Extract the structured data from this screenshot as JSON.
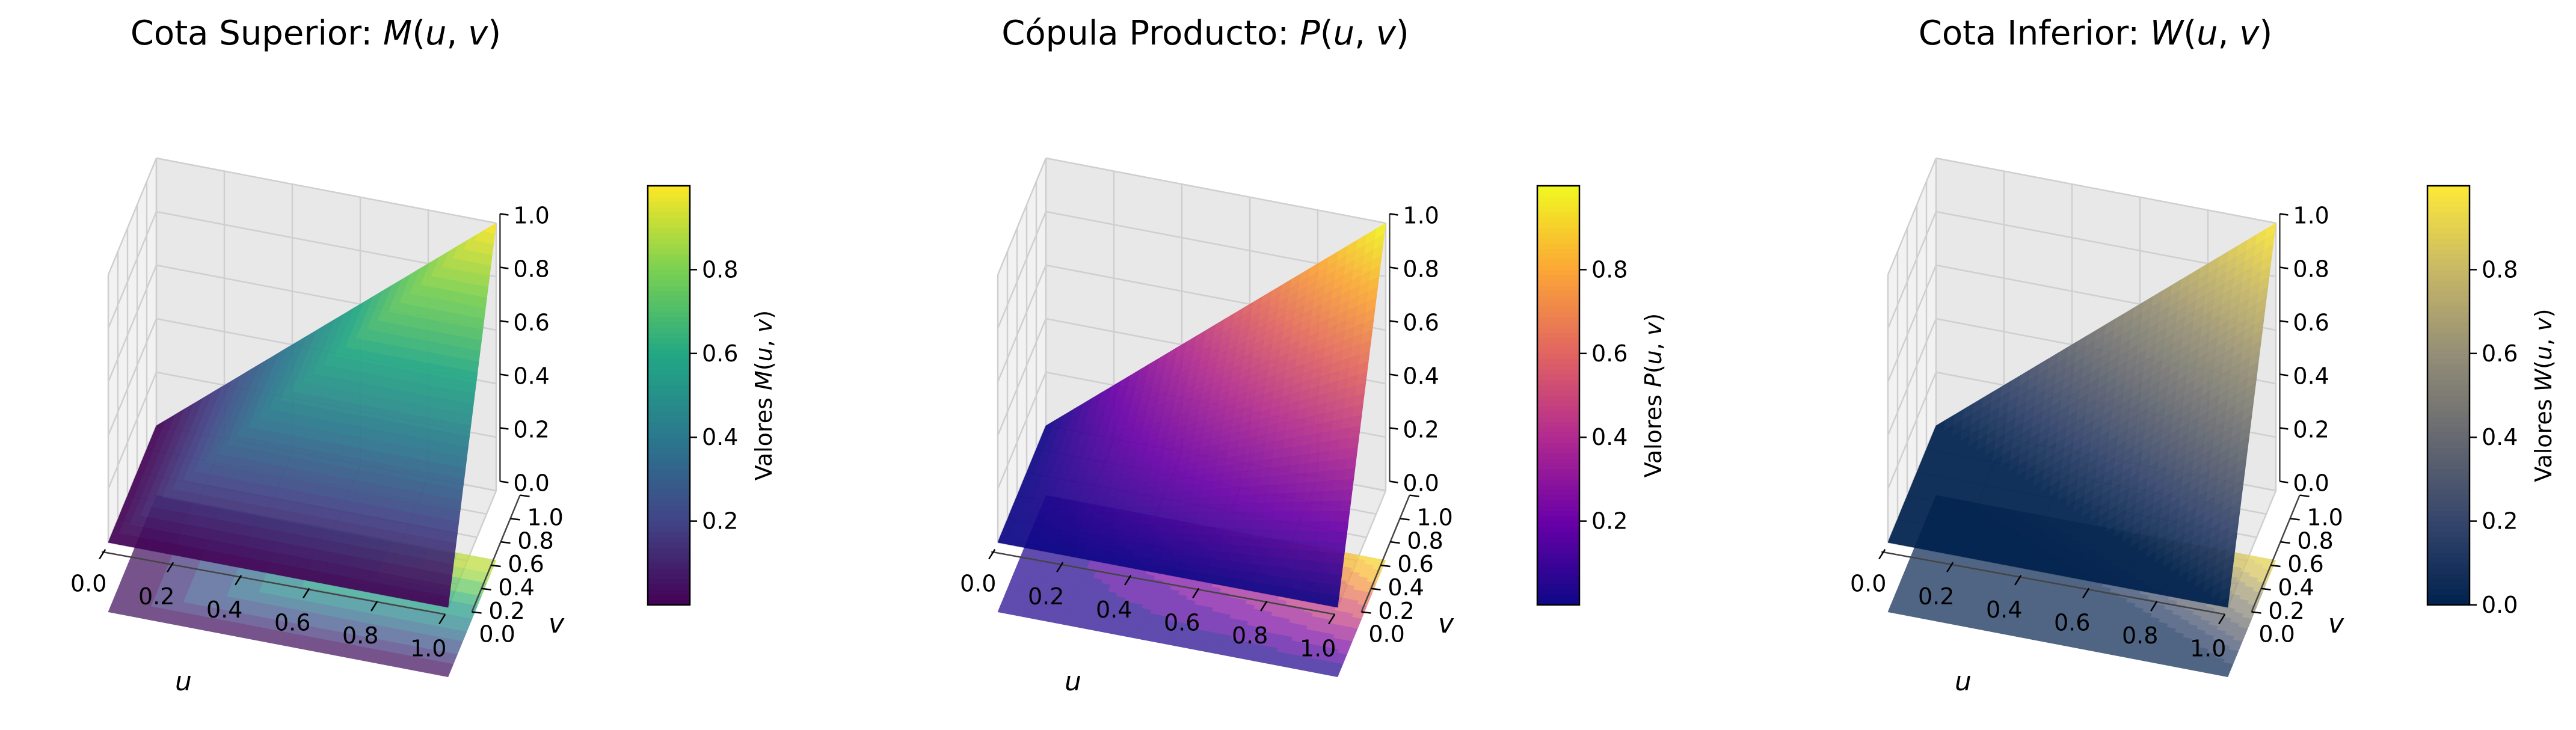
{
  "chart_data": [
    {
      "type": "surface3d",
      "title": "Cota Superior: M(u,v)",
      "title_parts": [
        "Cota Superior: ",
        "M",
        "(",
        "u",
        ", ",
        "v",
        ")"
      ],
      "function": "M(u,v) = min(u,v)",
      "xlabel": "u",
      "ylabel": "v",
      "x": [
        0.0,
        0.2,
        0.4,
        0.6,
        0.8,
        1.0
      ],
      "y": [
        0.0,
        0.2,
        0.4,
        0.6,
        0.8,
        1.0
      ],
      "z": [
        [
          0.0,
          0.0,
          0.0,
          0.0,
          0.0,
          0.0
        ],
        [
          0.0,
          0.2,
          0.2,
          0.2,
          0.2,
          0.2
        ],
        [
          0.0,
          0.2,
          0.4,
          0.4,
          0.4,
          0.4
        ],
        [
          0.0,
          0.2,
          0.4,
          0.6,
          0.6,
          0.6
        ],
        [
          0.0,
          0.2,
          0.4,
          0.6,
          0.8,
          0.8
        ],
        [
          0.0,
          0.2,
          0.4,
          0.6,
          0.8,
          1.0
        ]
      ],
      "x_ticks": [
        "0.0",
        "0.2",
        "0.4",
        "0.6",
        "0.8",
        "1.0"
      ],
      "y_ticks": [
        "0.0",
        "0.2",
        "0.4",
        "0.6",
        "0.8",
        "1.0"
      ],
      "z_ticks": [
        "0.0",
        "0.2",
        "0.4",
        "0.6",
        "0.8",
        "1.0"
      ],
      "zlim": [
        0,
        1
      ],
      "colormap": "viridis",
      "colormap_stops": [
        "#440154",
        "#414487",
        "#2a788e",
        "#22a884",
        "#7ad151",
        "#fde725"
      ],
      "colorbar_label": "Valores M(u,v)",
      "colorbar_label_parts": [
        "Valores ",
        "M",
        "(",
        "u",
        ", ",
        "v",
        ")"
      ],
      "colorbar_ticks": [
        "0.2",
        "0.4",
        "0.6",
        "0.8"
      ],
      "colorbar_tick_values": [
        0.2,
        0.4,
        0.6,
        0.8
      ],
      "colorbar_range": [
        0,
        1
      ],
      "floor_contour": true,
      "grid": true
    },
    {
      "type": "surface3d",
      "title": "Cópula Producto: P(u,v)",
      "title_parts": [
        "Cópula Producto: ",
        "P",
        "(",
        "u",
        ", ",
        "v",
        ")"
      ],
      "function": "P(u,v) = u·v",
      "xlabel": "u",
      "ylabel": "v",
      "x": [
        0.0,
        0.2,
        0.4,
        0.6,
        0.8,
        1.0
      ],
      "y": [
        0.0,
        0.2,
        0.4,
        0.6,
        0.8,
        1.0
      ],
      "z": [
        [
          0.0,
          0.0,
          0.0,
          0.0,
          0.0,
          0.0
        ],
        [
          0.0,
          0.04,
          0.08,
          0.12,
          0.16,
          0.2
        ],
        [
          0.0,
          0.08,
          0.16,
          0.24,
          0.32,
          0.4
        ],
        [
          0.0,
          0.12,
          0.24,
          0.36,
          0.48,
          0.6
        ],
        [
          0.0,
          0.16,
          0.32,
          0.48,
          0.64,
          0.8
        ],
        [
          0.0,
          0.2,
          0.4,
          0.6,
          0.8,
          1.0
        ]
      ],
      "x_ticks": [
        "0.0",
        "0.2",
        "0.4",
        "0.6",
        "0.8",
        "1.0"
      ],
      "y_ticks": [
        "0.0",
        "0.2",
        "0.4",
        "0.6",
        "0.8",
        "1.0"
      ],
      "z_ticks": [
        "0.0",
        "0.2",
        "0.4",
        "0.6",
        "0.8",
        "1.0"
      ],
      "zlim": [
        0,
        1
      ],
      "colormap": "plasma",
      "colormap_stops": [
        "#0d0887",
        "#6a00a8",
        "#b12a90",
        "#e16462",
        "#fca636",
        "#f0f921"
      ],
      "colorbar_label": "Valores P(u,v)",
      "colorbar_label_parts": [
        "Valores ",
        "P",
        "(",
        "u",
        ", ",
        "v",
        ")"
      ],
      "colorbar_ticks": [
        "0.2",
        "0.4",
        "0.6",
        "0.8"
      ],
      "colorbar_tick_values": [
        0.2,
        0.4,
        0.6,
        0.8
      ],
      "colorbar_range": [
        0,
        1
      ],
      "floor_contour": true,
      "grid": true
    },
    {
      "type": "surface3d",
      "title": "Cota Inferior: W(u,v)",
      "title_parts": [
        "Cota Inferior: ",
        "W",
        "(",
        "u",
        ", ",
        "v",
        ")"
      ],
      "function": "W(u,v) = max(u+v-1, 0)",
      "xlabel": "u",
      "ylabel": "v",
      "x": [
        0.0,
        0.2,
        0.4,
        0.6,
        0.8,
        1.0
      ],
      "y": [
        0.0,
        0.2,
        0.4,
        0.6,
        0.8,
        1.0
      ],
      "z": [
        [
          0.0,
          0.0,
          0.0,
          0.0,
          0.0,
          0.0
        ],
        [
          0.0,
          0.0,
          0.0,
          0.0,
          0.0,
          0.2
        ],
        [
          0.0,
          0.0,
          0.0,
          0.0,
          0.2,
          0.4
        ],
        [
          0.0,
          0.0,
          0.0,
          0.2,
          0.4,
          0.6
        ],
        [
          0.0,
          0.0,
          0.2,
          0.4,
          0.6,
          0.8
        ],
        [
          0.0,
          0.2,
          0.4,
          0.6,
          0.8,
          1.0
        ]
      ],
      "x_ticks": [
        "0.0",
        "0.2",
        "0.4",
        "0.6",
        "0.8",
        "1.0"
      ],
      "y_ticks": [
        "0.0",
        "0.2",
        "0.4",
        "0.6",
        "0.8",
        "1.0"
      ],
      "z_ticks": [
        "0.0",
        "0.2",
        "0.4",
        "0.6",
        "0.8",
        "1.0"
      ],
      "zlim": [
        0,
        1
      ],
      "colormap": "cividis",
      "colormap_stops": [
        "#00224e",
        "#35456c",
        "#666970",
        "#948e77",
        "#c8b866",
        "#fee838"
      ],
      "colorbar_label": "Valores W(u,v)",
      "colorbar_label_parts": [
        "Valores ",
        "W",
        "(",
        "u",
        ", ",
        "v",
        ")"
      ],
      "colorbar_ticks": [
        "0.0",
        "0.2",
        "0.4",
        "0.6",
        "0.8"
      ],
      "colorbar_tick_values": [
        0.0,
        0.2,
        0.4,
        0.6,
        0.8
      ],
      "colorbar_range": [
        0,
        1
      ],
      "floor_contour": true,
      "grid": true
    }
  ],
  "colors": {
    "pane_left": "#f2f2f2",
    "pane_back": "#e8e8e8",
    "pane_floor": "#ebebeb",
    "grid": "#cfcfcf",
    "text": "#000000"
  }
}
